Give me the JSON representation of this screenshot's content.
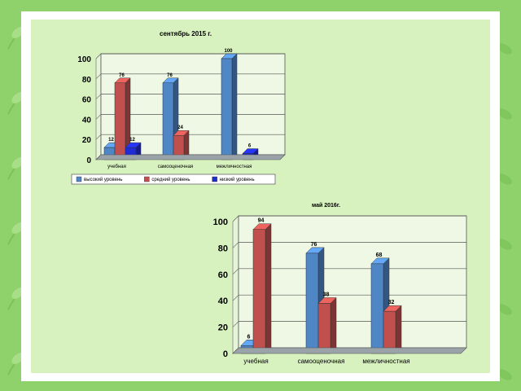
{
  "colors": {
    "background": "#8fd16b",
    "slide": "#d7f2bf",
    "high": "#4f86c6",
    "middle": "#c0504d",
    "low": "#1f2bd6",
    "floor": "#9aa4a8"
  },
  "chart_data": [
    {
      "type": "bar",
      "title": "сентябрь 2015 г.",
      "categories": [
        "учебная",
        "самооценочная",
        "межличностная"
      ],
      "series": [
        {
          "name": "высокий уровень",
          "values": [
            12,
            76,
            100
          ]
        },
        {
          "name": "средний уровень",
          "values": [
            76,
            24,
            null
          ]
        },
        {
          "name": "низкий уровень",
          "values": [
            12,
            null,
            6
          ]
        }
      ],
      "ylim": [
        0,
        100
      ],
      "yticks": [
        0,
        20,
        40,
        60,
        80,
        100
      ],
      "grid": true,
      "legend": "bottom"
    },
    {
      "type": "bar",
      "title": "май 2016г.",
      "categories": [
        "учебная",
        "самооценочная",
        "межличностная"
      ],
      "series": [
        {
          "name": "высокий уровень",
          "values": [
            6,
            76,
            68
          ]
        },
        {
          "name": "средний уровень",
          "values": [
            94,
            38,
            32
          ]
        },
        {
          "name": "низкий уровень",
          "values": [
            null,
            null,
            null
          ]
        }
      ],
      "ylim": [
        0,
        100
      ],
      "yticks": [
        0,
        20,
        40,
        60,
        80,
        100
      ],
      "grid": true,
      "legend": "bottom"
    }
  ]
}
